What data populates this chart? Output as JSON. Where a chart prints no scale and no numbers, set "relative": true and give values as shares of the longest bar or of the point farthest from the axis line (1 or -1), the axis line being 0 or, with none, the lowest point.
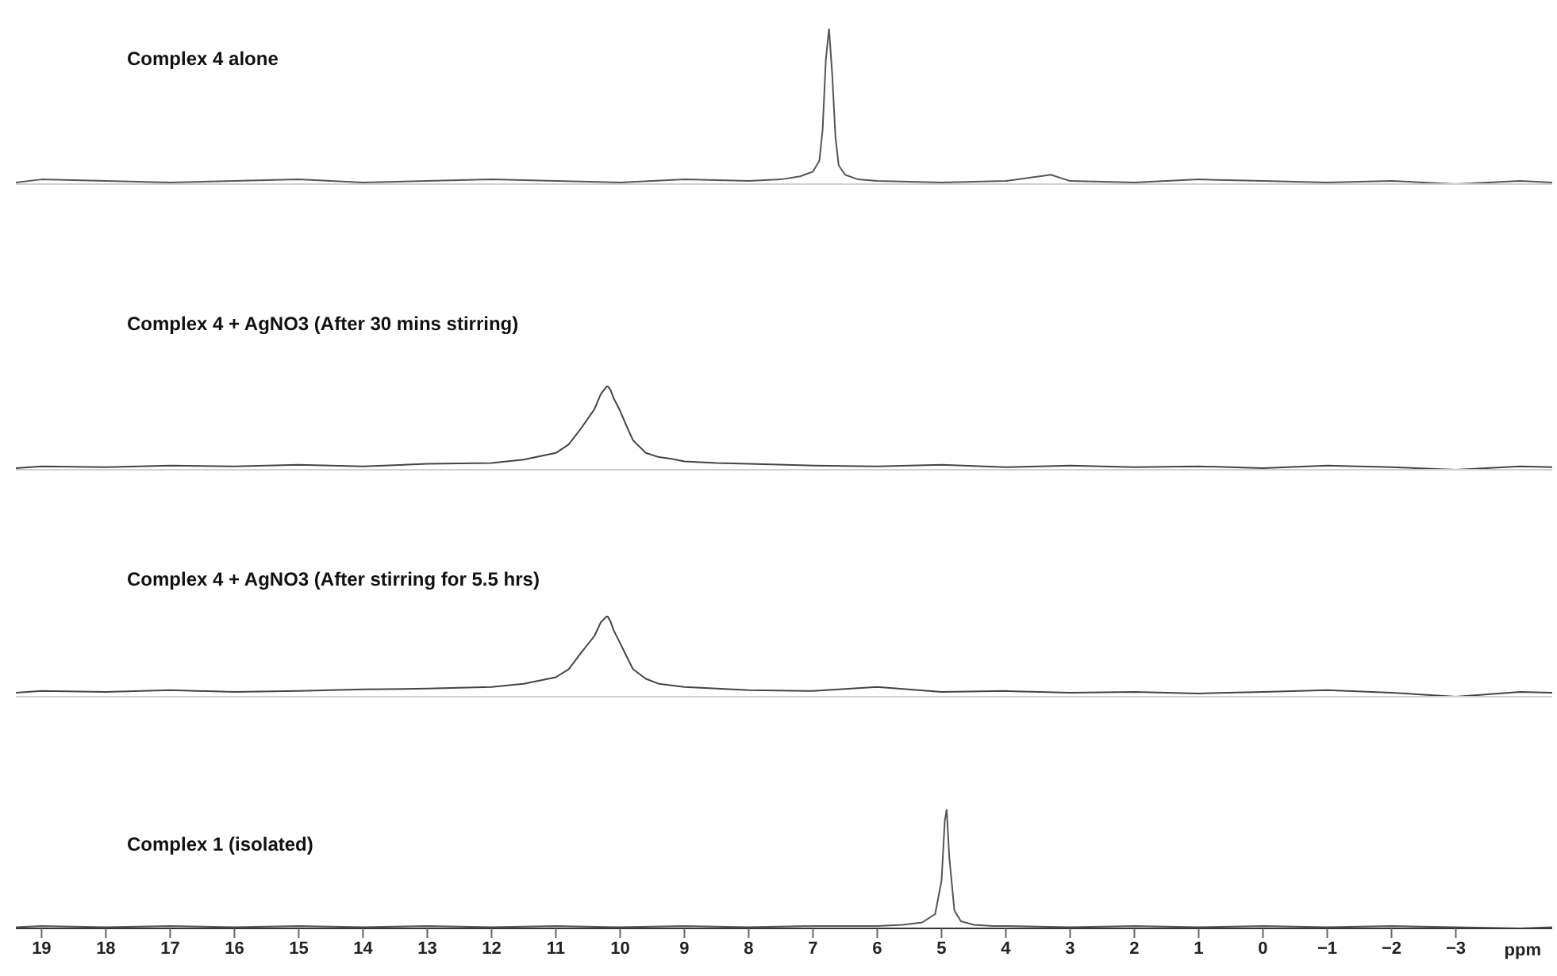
{
  "chart_data": [
    {
      "type": "line",
      "title": "Complex 4 alone",
      "relative": true,
      "color": "#555555",
      "xlim": [
        19.4,
        -4.5
      ],
      "tick_labels": false,
      "x": [
        19.4,
        19,
        18,
        17,
        16,
        15,
        14,
        13,
        12,
        11,
        10,
        9,
        8,
        7.5,
        7.2,
        7.0,
        6.9,
        6.85,
        6.8,
        6.75,
        6.7,
        6.65,
        6.6,
        6.5,
        6.3,
        6,
        5,
        4,
        3.3,
        3,
        2,
        1,
        0,
        -1,
        -2,
        -3,
        -4,
        -4.5
      ],
      "values": [
        0.01,
        0.03,
        0.02,
        0.01,
        0.02,
        0.03,
        0.01,
        0.02,
        0.03,
        0.02,
        0.01,
        0.03,
        0.02,
        0.03,
        0.05,
        0.08,
        0.15,
        0.35,
        0.8,
        1,
        0.7,
        0.3,
        0.12,
        0.06,
        0.03,
        0.02,
        0.01,
        0.02,
        0.06,
        0.02,
        0.01,
        0.03,
        0.02,
        0.01,
        0.02,
        0,
        0.02,
        0.01
      ]
    },
    {
      "type": "line",
      "title": "Complex 4 + AgNO3 (After 30 mins stirring)",
      "relative": true,
      "color": "#444444",
      "xlim": [
        19.4,
        -4.5
      ],
      "tick_labels": false,
      "x": [
        19.4,
        19,
        18,
        17,
        16,
        15,
        14,
        13,
        12,
        11.5,
        11,
        10.8,
        10.6,
        10.4,
        10.3,
        10.2,
        10.15,
        10.1,
        10,
        9.9,
        9.8,
        9.6,
        9.4,
        9.2,
        9,
        8.5,
        8,
        7,
        6,
        5,
        4,
        3,
        2,
        1,
        0,
        -1,
        -2,
        -3,
        -4,
        -4.5
      ],
      "values": [
        0.02,
        0.04,
        0.03,
        0.05,
        0.04,
        0.06,
        0.04,
        0.07,
        0.08,
        0.12,
        0.2,
        0.3,
        0.5,
        0.72,
        0.9,
        1,
        0.95,
        0.85,
        0.7,
        0.52,
        0.35,
        0.2,
        0.15,
        0.13,
        0.1,
        0.08,
        0.07,
        0.05,
        0.04,
        0.06,
        0.03,
        0.05,
        0.03,
        0.04,
        0.02,
        0.05,
        0.03,
        0,
        0.04,
        0.03
      ]
    },
    {
      "type": "line",
      "title": "Complex 4 + AgNO3 (After stirring for 5.5 hrs)",
      "relative": true,
      "color": "#444444",
      "xlim": [
        19.4,
        -4.5
      ],
      "tick_labels": false,
      "x": [
        19.4,
        19,
        18,
        17,
        16,
        15,
        14,
        13,
        12,
        11.5,
        11,
        10.8,
        10.6,
        10.4,
        10.3,
        10.2,
        10.15,
        10.1,
        10,
        9.9,
        9.8,
        9.6,
        9.4,
        9.2,
        9,
        8.5,
        8,
        7,
        6,
        5,
        4,
        3,
        2,
        1,
        0,
        -1,
        -2,
        -3,
        -4,
        -4.5
      ],
      "values": [
        0.05,
        0.07,
        0.06,
        0.08,
        0.06,
        0.07,
        0.09,
        0.1,
        0.12,
        0.16,
        0.24,
        0.34,
        0.55,
        0.75,
        0.92,
        1,
        0.93,
        0.82,
        0.66,
        0.5,
        0.34,
        0.22,
        0.16,
        0.14,
        0.12,
        0.1,
        0.08,
        0.07,
        0.12,
        0.06,
        0.07,
        0.05,
        0.06,
        0.04,
        0.06,
        0.08,
        0.05,
        0,
        0.06,
        0.05
      ]
    },
    {
      "type": "line",
      "title": "Complex 1 (isolated)",
      "relative": true,
      "color": "#555555",
      "xlim": [
        19.4,
        -4.5
      ],
      "xlabel": "ppm",
      "xticks": [
        19,
        18,
        17,
        16,
        15,
        14,
        13,
        12,
        11,
        10,
        9,
        8,
        7,
        6,
        5,
        4,
        3,
        2,
        1,
        0,
        {
          "value": -1,
          "label": "−1"
        },
        {
          "value": -2,
          "label": "−2"
        },
        {
          "value": -3,
          "label": "−3"
        }
      ],
      "x": [
        19.4,
        19,
        18,
        17,
        16,
        15,
        14,
        13,
        12,
        11,
        10,
        9,
        8,
        7,
        6,
        5.6,
        5.3,
        5.1,
        5.0,
        4.95,
        4.92,
        4.88,
        4.8,
        4.7,
        4.5,
        4.2,
        4,
        3,
        2,
        1,
        0,
        -1,
        -2,
        -3,
        -4,
        -4.5
      ],
      "values": [
        0.01,
        0.02,
        0.01,
        0.02,
        0.01,
        0.02,
        0.01,
        0.02,
        0.01,
        0.02,
        0.01,
        0.02,
        0.01,
        0.02,
        0.02,
        0.03,
        0.05,
        0.12,
        0.4,
        0.9,
        1,
        0.6,
        0.15,
        0.06,
        0.03,
        0.02,
        0.02,
        0.01,
        0.02,
        0.01,
        0.02,
        0.01,
        0.02,
        0.01,
        0,
        0.01
      ]
    }
  ]
}
